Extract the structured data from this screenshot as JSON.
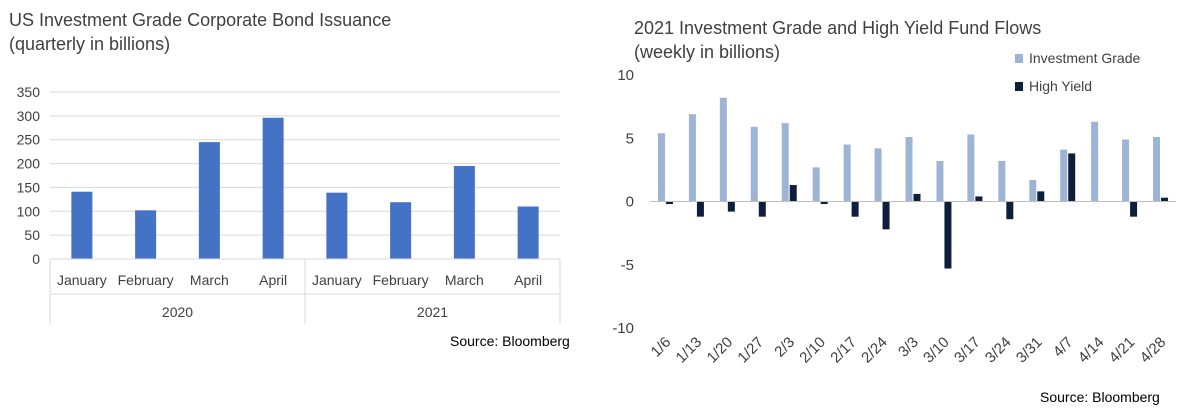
{
  "chart_data": [
    {
      "type": "bar",
      "title": "US Investment Grade Corporate Bond Issuance",
      "subtitle": "(quarterly in billions)",
      "categories": [
        "January",
        "February",
        "March",
        "April",
        "January",
        "February",
        "March",
        "April"
      ],
      "groups": [
        {
          "label": "2020",
          "count": 4
        },
        {
          "label": "2021",
          "count": 4
        }
      ],
      "series": [
        {
          "values": [
            141,
            102,
            245,
            296,
            139,
            119,
            195,
            110
          ],
          "color": "#4472C4"
        }
      ],
      "yticks": [
        "0",
        "50",
        "100",
        "150",
        "200",
        "250",
        "300",
        "350"
      ],
      "ylim": [
        0,
        350
      ],
      "grid": true,
      "source": "Source: Bloomberg"
    },
    {
      "type": "bar",
      "title": "2021 Investment Grade and High Yield Fund Flows",
      "subtitle": "(weekly in billions)",
      "categories": [
        "1/6",
        "1/13",
        "1/20",
        "1/27",
        "2/3",
        "2/10",
        "2/17",
        "2/24",
        "3/3",
        "3/10",
        "3/17",
        "3/24",
        "3/31",
        "4/7",
        "4/14",
        "4/21",
        "4/28"
      ],
      "series": [
        {
          "name": "Investment Grade",
          "color": "#9DB4D6",
          "values": [
            5.4,
            6.9,
            8.2,
            5.9,
            6.2,
            2.7,
            4.5,
            4.2,
            5.1,
            3.2,
            5.3,
            3.2,
            1.7,
            4.1,
            6.3,
            4.9,
            5.1
          ]
        },
        {
          "name": "High Yield",
          "color": "#0D1F3C",
          "values": [
            -0.2,
            -1.2,
            -0.8,
            -1.2,
            1.3,
            -0.2,
            -1.2,
            -2.2,
            0.6,
            -5.3,
            0.4,
            -1.4,
            0.8,
            3.8,
            0,
            -1.2,
            0.3
          ]
        }
      ],
      "yticks": [
        "10",
        "5",
        "0",
        "-5",
        "-10"
      ],
      "ylim": [
        -10,
        10
      ],
      "grid": false,
      "legend": "top-right",
      "source": "Source: Bloomberg"
    }
  ]
}
